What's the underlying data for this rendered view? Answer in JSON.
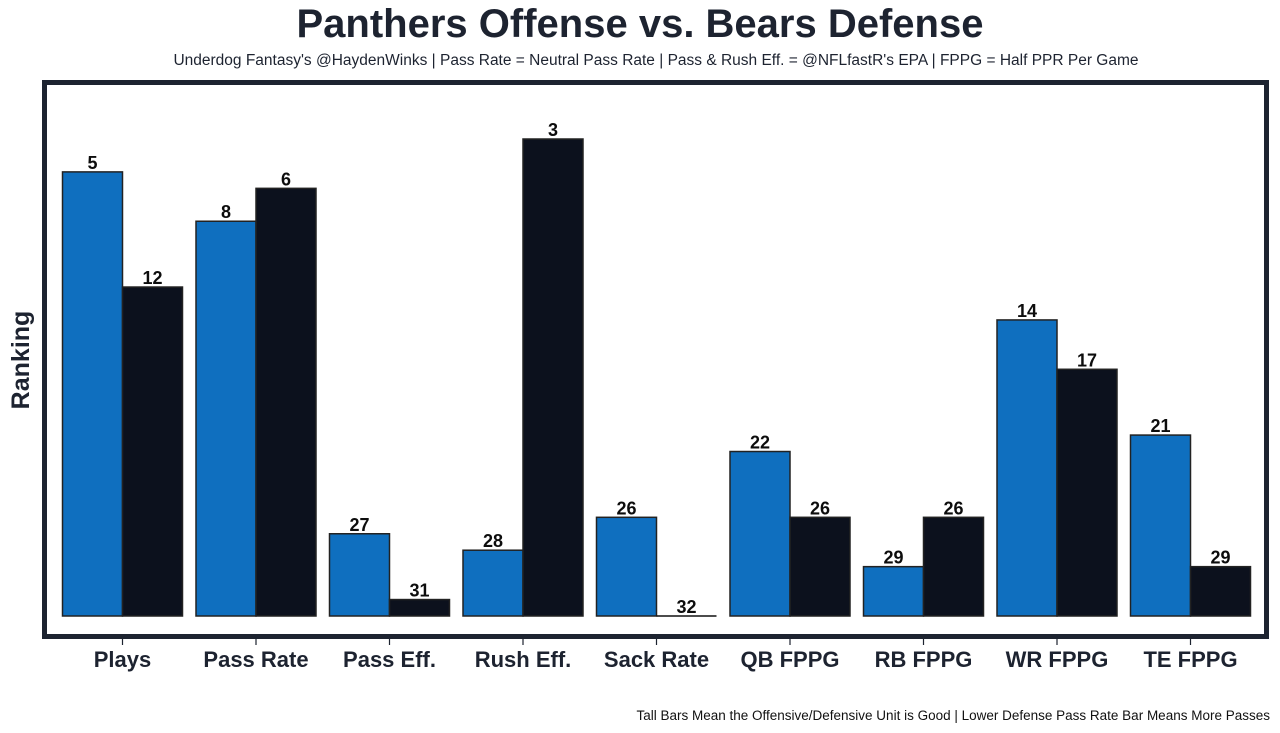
{
  "chart_data": {
    "type": "bar",
    "title": "Panthers Offense vs. Bears Defense",
    "subtitle": "Underdog Fantasy's @HaydenWinks | Pass Rate = Neutral Pass Rate | Pass & Rush Eff. = @NFLfastR's EPA | FPPG = Half PPR Per Game",
    "footer": "Tall Bars Mean the Offensive/Defensive Unit is Good | Lower Defense Pass Rate Bar Means More Passes",
    "xlabel": "",
    "ylabel": "Ranking",
    "categories": [
      "Plays",
      "Pass Rate",
      "Pass Eff.",
      "Rush Eff.",
      "Sack Rate",
      "QB FPPG",
      "RB FPPG",
      "WR FPPG",
      "TE FPPG"
    ],
    "series": [
      {
        "name": "Panthers Offense",
        "color": "#0f6fbf",
        "ranks": [
          5,
          8,
          27,
          28,
          26,
          22,
          29,
          14,
          21
        ]
      },
      {
        "name": "Bears Defense",
        "color": "#0c111d",
        "ranks": [
          12,
          6,
          31,
          3,
          32,
          26,
          26,
          17,
          29
        ]
      }
    ],
    "bar_height_rule": "bar height = 32 - rank (rank 1 tallest, rank 32 zero height)",
    "total_teams": 32,
    "ylim": [
      0,
      30.5
    ],
    "yticks_visible": false,
    "grid": false,
    "legend": "none",
    "frame_color": "#1d2330",
    "bar_edge_color": "#222222"
  }
}
